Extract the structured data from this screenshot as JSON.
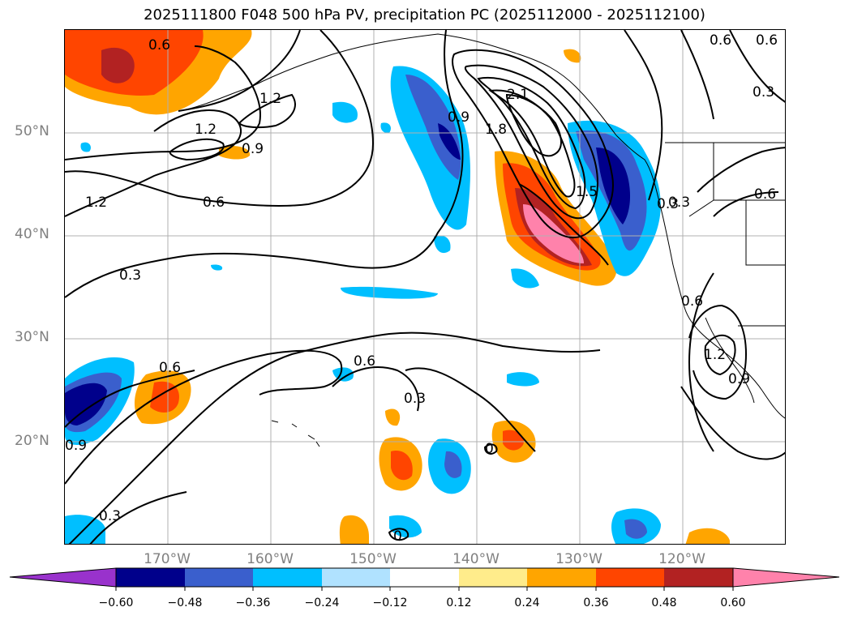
{
  "title": "2025111800 F048 500 hPa PV, precipitation PC (2025112000 - 2025112100)",
  "lat_labels": [
    "50°N",
    "40°N",
    "30°N",
    "20°N"
  ],
  "lon_labels": [
    "170°W",
    "160°W",
    "150°W",
    "140°W",
    "130°W",
    "120°W"
  ],
  "colorbar": {
    "ticks": [
      "−0.60",
      "−0.48",
      "−0.36",
      "−0.24",
      "−0.12",
      "0.12",
      "0.24",
      "0.36",
      "0.48",
      "0.60"
    ],
    "colors": [
      "#9932cc",
      "#00008b",
      "#3a5fcd",
      "#00bfff",
      "#b0e2ff",
      "#ffffff",
      "#ffec8b",
      "#ffa500",
      "#ff4500",
      "#b22222",
      "#ff82ab"
    ]
  },
  "contour_labels": [
    "0.6",
    "1.2",
    "1.2",
    "0.9",
    "1.2",
    "0.6",
    "0.3",
    "0.9",
    "2.1",
    "1.8",
    "1.5",
    "0.6",
    "0.3",
    "0.6",
    "0.3",
    "0.6",
    "0.6",
    "0.3",
    "0.9",
    "1.2",
    "0.3",
    "0.6",
    "0.6",
    "0.3",
    "0.9",
    "0",
    "0"
  ],
  "colors": {
    "precip_pos_light": "#ffec8b",
    "precip_pos_mid": "#ffa500",
    "precip_pos_strong": "#ff4500",
    "precip_pos_heavy": "#b22222",
    "precip_pos_max": "#ff82ab",
    "precip_neg_light": "#00bfff",
    "precip_neg_mid": "#3a5fcd",
    "precip_neg_strong": "#00008b",
    "grid": "#b0b0b0",
    "label_gray": "#808080"
  }
}
